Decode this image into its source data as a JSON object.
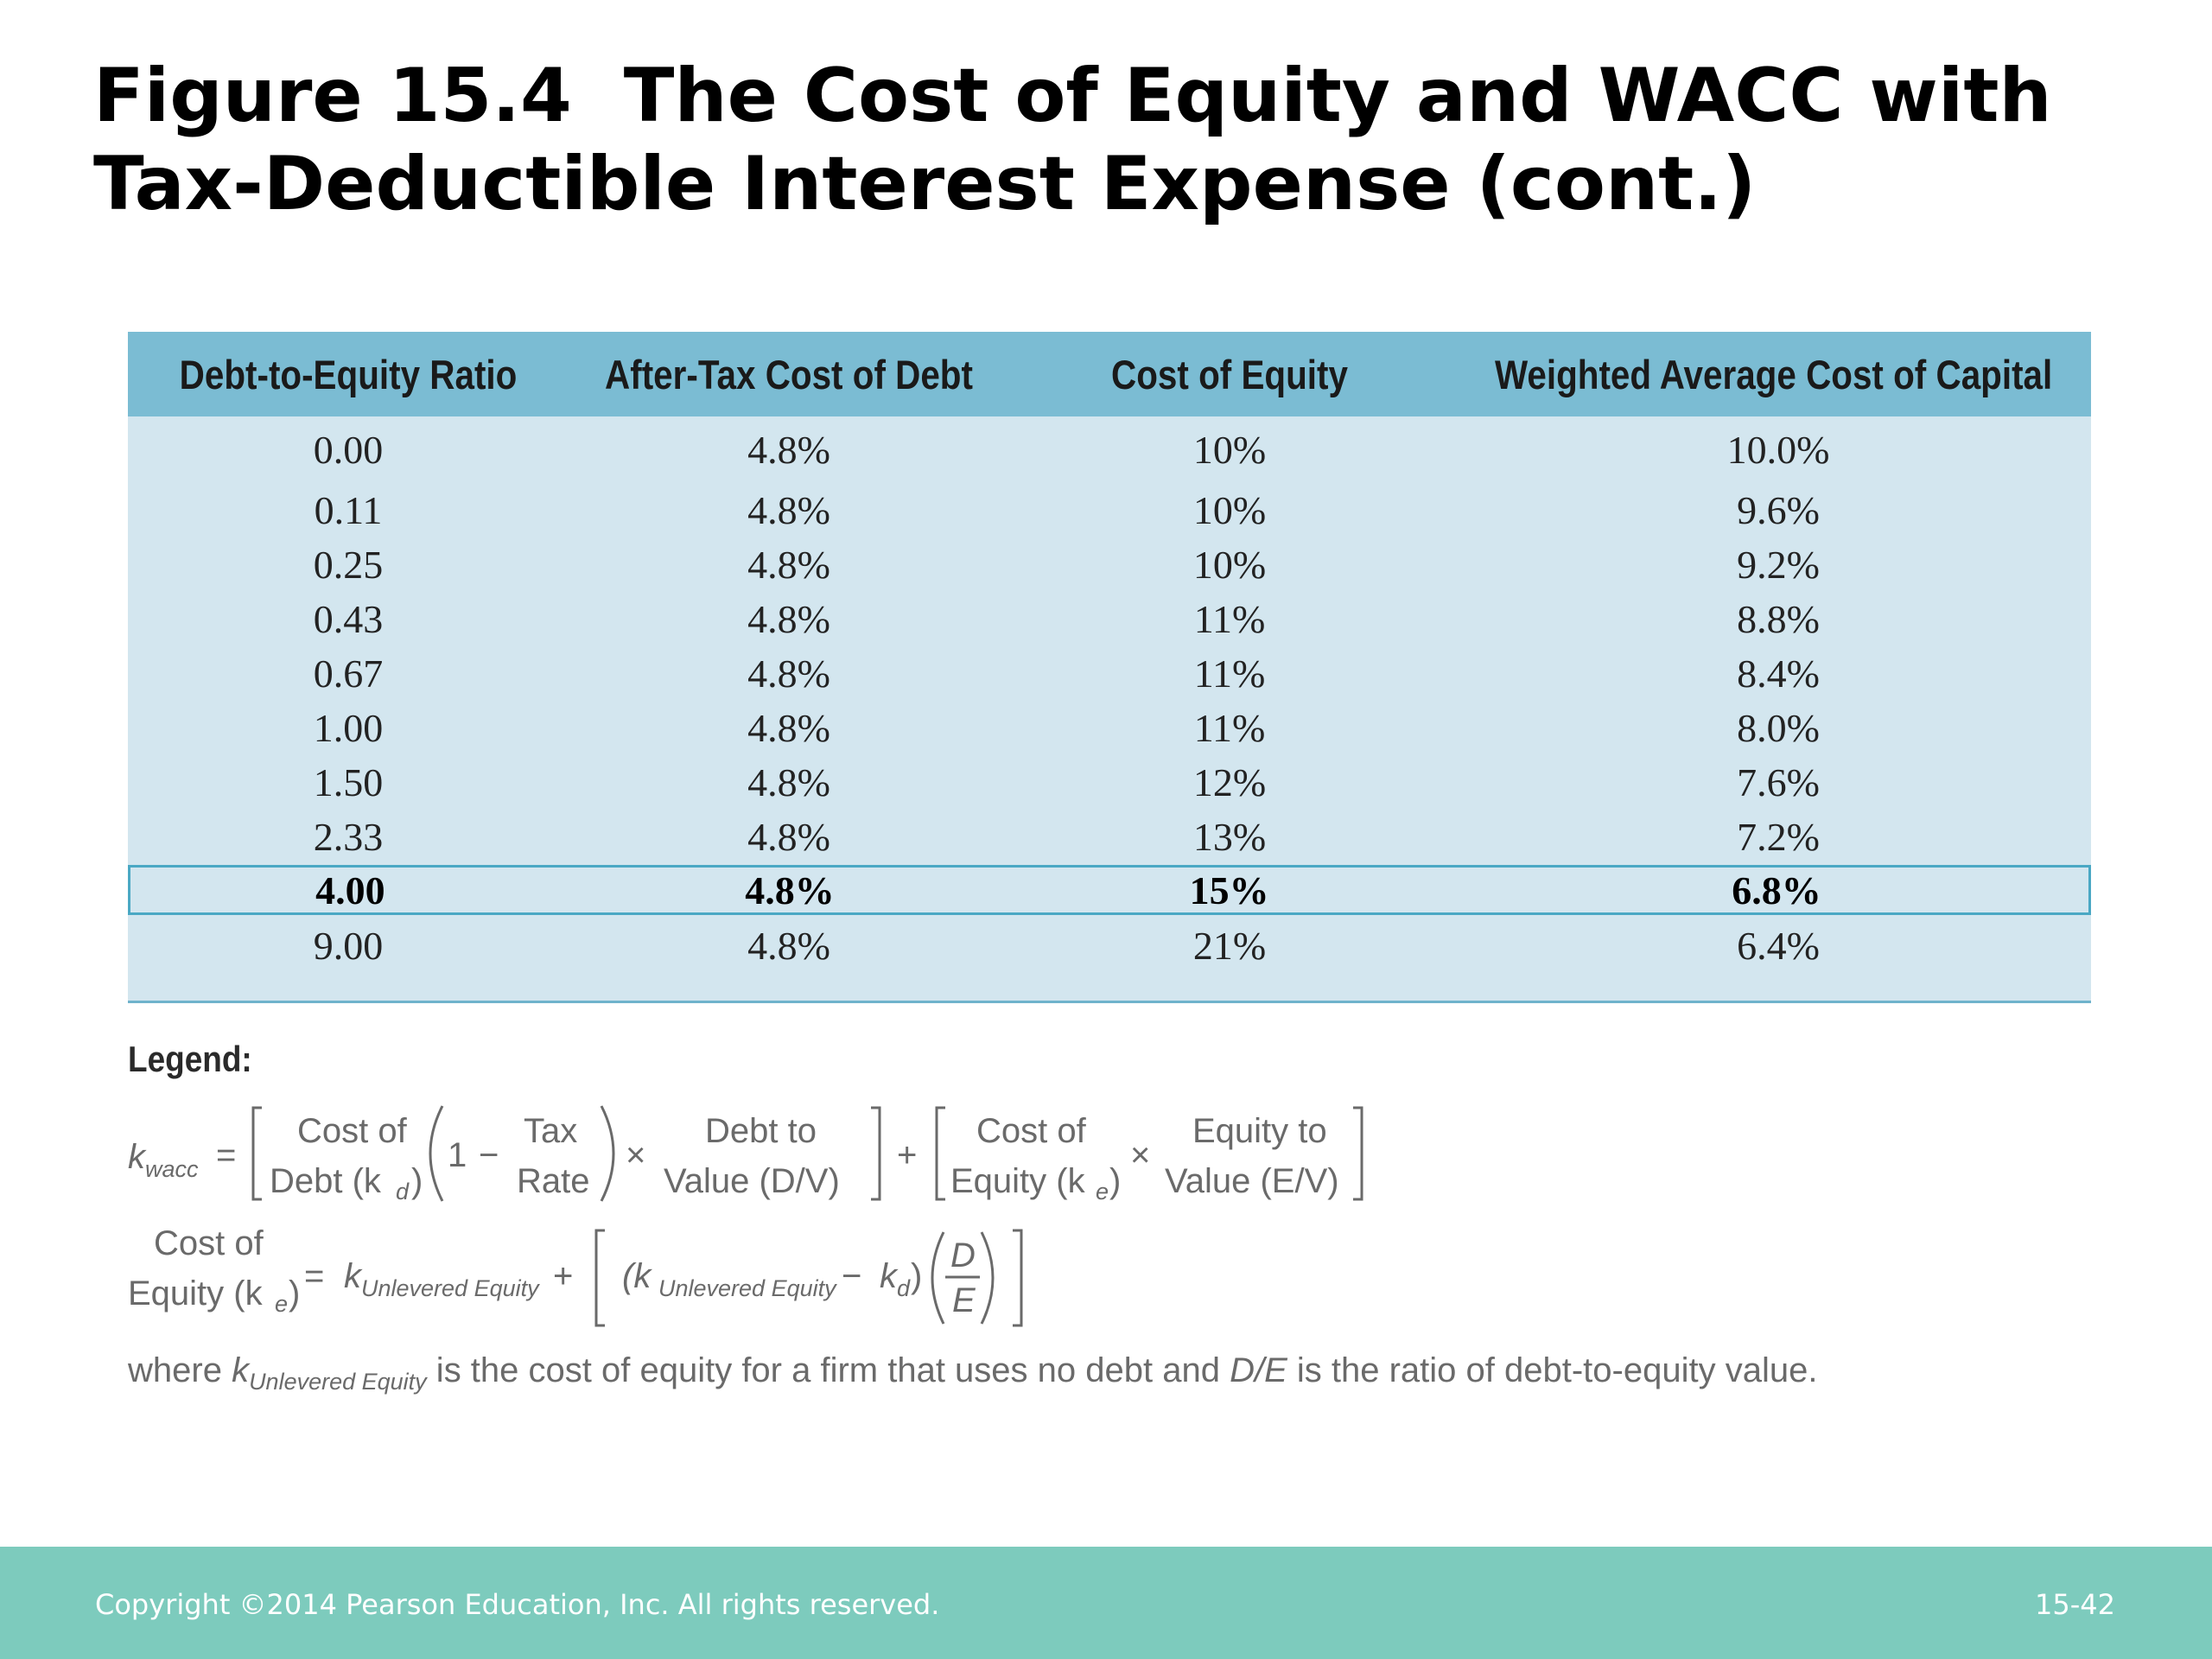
{
  "title": {
    "line1": "Figure 15.4  The Cost of Equity and WACC with",
    "line2": "Tax-Deductible Interest Expense (cont.)"
  },
  "table": {
    "headers": [
      "Debt-to-Equity Ratio",
      "After-Tax Cost of Debt",
      "Cost of Equity",
      "Weighted Average Cost of Capital"
    ],
    "rows": [
      [
        "0.00",
        "4.8%",
        "10%",
        "10.0%"
      ],
      [
        "0.11",
        "4.8%",
        "10%",
        "9.6%"
      ],
      [
        "0.25",
        "4.8%",
        "10%",
        "9.2%"
      ],
      [
        "0.43",
        "4.8%",
        "11%",
        "8.8%"
      ],
      [
        "0.67",
        "4.8%",
        "11%",
        "8.4%"
      ],
      [
        "1.00",
        "4.8%",
        "11%",
        "8.0%"
      ],
      [
        "1.50",
        "4.8%",
        "12%",
        "7.6%"
      ],
      [
        "2.33",
        "4.8%",
        "13%",
        "7.2%"
      ],
      [
        "4.00",
        "4.8%",
        "15%",
        "6.8%"
      ],
      [
        "9.00",
        "4.8%",
        "21%",
        "6.4%"
      ]
    ],
    "highlighted_row": 8
  },
  "legend": {
    "heading": "Legend:",
    "formula1": {
      "lhs_k": "k",
      "lhs_sub": "wacc",
      "eq": "=",
      "cost_of": "Cost of",
      "debt_kd": "Debt (k",
      "d_sub": "d",
      "close_paren": ")",
      "one": "1",
      "minus": "−",
      "tax": "Tax",
      "rate": "Rate",
      "times": "×",
      "debt_to": "Debt to",
      "value_dv": "Value (D/V)",
      "plus": "+",
      "cost_of_2": "Cost of",
      "equity_ke": "Equity (k",
      "e_sub": "e",
      "equity_to": "Equity to",
      "value_ev": "Value (E/V)"
    },
    "formula2": {
      "cost_of": "Cost of",
      "equity_ke": "Equity (k",
      "e_sub": "e",
      "close_paren": ")",
      "eq": "=",
      "k": "k",
      "unlevered_sub": "Unlevered Equity",
      "plus": "+",
      "open_paren": "(k",
      "minus": "−",
      "k2": "k",
      "d_sub": "d",
      "close": ")",
      "D": "D",
      "E": "E"
    },
    "where": {
      "prefix": "where ",
      "k": "k",
      "sub": "Unlevered Equity",
      "mid": " is the cost of equity for a firm that uses no debt and ",
      "de": "D/E",
      "suffix": " is the ratio of debt-to-equity value."
    }
  },
  "footer": {
    "copyright": "Copyright ©2014 Pearson Education, Inc. All rights reserved.",
    "page": "15-42"
  },
  "colors": {
    "header_bg": "#7bbcd3",
    "table_bg": "#d3e6ef",
    "footer_bg": "#7dcbbd",
    "highlight_border": "#4aa8c4"
  }
}
